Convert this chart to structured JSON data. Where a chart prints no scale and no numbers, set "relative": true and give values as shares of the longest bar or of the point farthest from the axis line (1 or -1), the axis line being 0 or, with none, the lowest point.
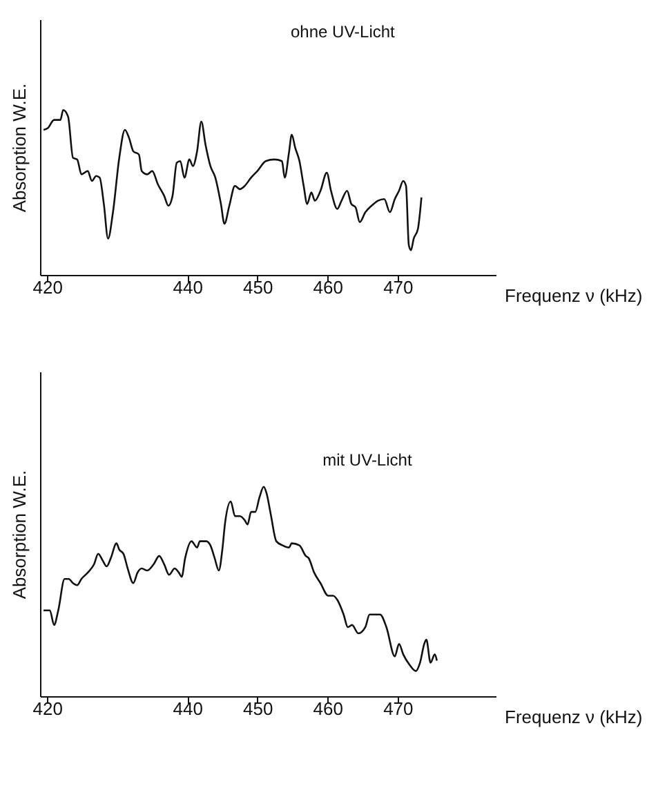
{
  "chart_data": [
    {
      "type": "line",
      "relative": true,
      "ylabel": "Absorption W.E.",
      "xlabel": "Frequenz ν (kHz)",
      "annotations": [
        "ohne UV-Licht"
      ],
      "xlim": [
        419,
        484
      ],
      "xticks": [
        420,
        440,
        450,
        460,
        470
      ],
      "x": [
        419.5,
        420.1,
        421.0,
        421.9,
        422.3,
        423.0,
        423.7,
        424.3,
        424.9,
        425.8,
        426.4,
        427.0,
        427.5,
        428.1,
        428.7,
        429.4,
        430.3,
        431.1,
        431.7,
        432.3,
        433.1,
        433.5,
        434.3,
        435.0,
        435.8,
        436.7,
        437.3,
        437.9,
        438.5,
        439.0,
        439.6,
        440.3,
        440.8,
        441.4,
        442.0,
        442.6,
        443.3,
        444.0,
        444.8,
        445.3,
        446.0,
        446.8,
        447.5,
        448.2,
        449.1,
        450.0,
        451.2,
        452.4,
        453.5,
        453.9,
        454.5,
        454.9,
        455.4,
        456.0,
        456.6,
        457.1,
        457.7,
        458.2,
        459.0,
        459.9,
        460.5,
        461.4,
        462.0,
        462.8,
        463.4,
        464.0,
        464.6,
        465.4,
        466.3,
        467.2,
        468.1,
        468.9,
        469.6,
        470.2,
        470.8,
        471.2,
        471.6,
        471.9,
        472.3,
        472.9,
        473.4
      ],
      "series": [
        {
          "color": "#111111",
          "values": [
            0.88,
            0.89,
            0.94,
            0.94,
            1.0,
            0.96,
            0.71,
            0.7,
            0.61,
            0.63,
            0.57,
            0.6,
            0.59,
            0.43,
            0.22,
            0.38,
            0.71,
            0.88,
            0.83,
            0.75,
            0.73,
            0.63,
            0.61,
            0.63,
            0.55,
            0.48,
            0.42,
            0.48,
            0.68,
            0.69,
            0.59,
            0.7,
            0.66,
            0.75,
            0.93,
            0.79,
            0.66,
            0.59,
            0.43,
            0.31,
            0.42,
            0.54,
            0.52,
            0.54,
            0.59,
            0.63,
            0.69,
            0.7,
            0.69,
            0.59,
            0.74,
            0.85,
            0.77,
            0.69,
            0.54,
            0.43,
            0.5,
            0.45,
            0.51,
            0.62,
            0.51,
            0.4,
            0.45,
            0.51,
            0.43,
            0.41,
            0.32,
            0.38,
            0.42,
            0.45,
            0.46,
            0.38,
            0.46,
            0.51,
            0.57,
            0.54,
            0.18,
            0.15,
            0.22,
            0.28,
            0.47
          ]
        }
      ]
    },
    {
      "type": "line",
      "relative": true,
      "ylabel": "Absorption W.E.",
      "xlabel": "Frequenz ν (kHz)",
      "annotations": [
        "mit UV-Licht"
      ],
      "xlim": [
        419,
        484
      ],
      "xticks": [
        420,
        440,
        450,
        460,
        470
      ],
      "x": [
        419.5,
        420.1,
        420.4,
        421.0,
        421.6,
        422.5,
        423.1,
        423.7,
        424.3,
        424.9,
        425.8,
        426.7,
        427.3,
        427.9,
        428.5,
        429.1,
        429.9,
        430.3,
        430.9,
        431.5,
        432.3,
        432.9,
        433.5,
        434.3,
        435.2,
        436.0,
        436.7,
        437.4,
        438.2,
        438.8,
        439.2,
        439.7,
        440.6,
        441.4,
        441.8,
        442.7,
        443.3,
        443.9,
        444.5,
        445.0,
        445.4,
        446.2,
        446.8,
        447.5,
        448.2,
        448.6,
        449.1,
        449.7,
        450.3,
        450.9,
        451.3,
        451.9,
        452.7,
        453.6,
        454.5,
        454.9,
        456.0,
        456.9,
        457.3,
        458.1,
        459.0,
        460.1,
        460.8,
        461.4,
        462.3,
        462.9,
        463.5,
        464.4,
        465.4,
        466.0,
        466.6,
        467.5,
        468.4,
        469.6,
        470.2,
        470.8,
        471.7,
        472.6,
        473.2,
        473.8,
        474.1,
        474.7,
        475.3,
        475.6
      ],
      "series": [
        {
          "color": "#111111",
          "values": [
            0.41,
            0.41,
            0.41,
            0.34,
            0.41,
            0.56,
            0.56,
            0.54,
            0.53,
            0.56,
            0.59,
            0.63,
            0.68,
            0.65,
            0.62,
            0.66,
            0.73,
            0.7,
            0.68,
            0.61,
            0.54,
            0.59,
            0.61,
            0.6,
            0.63,
            0.67,
            0.63,
            0.58,
            0.61,
            0.59,
            0.57,
            0.66,
            0.74,
            0.71,
            0.74,
            0.74,
            0.72,
            0.66,
            0.6,
            0.7,
            0.83,
            0.93,
            0.86,
            0.86,
            0.84,
            0.82,
            0.88,
            0.88,
            0.95,
            1.0,
            0.97,
            0.87,
            0.74,
            0.72,
            0.71,
            0.73,
            0.72,
            0.67,
            0.66,
            0.59,
            0.54,
            0.48,
            0.48,
            0.46,
            0.39,
            0.33,
            0.34,
            0.3,
            0.33,
            0.39,
            0.39,
            0.39,
            0.33,
            0.19,
            0.25,
            0.2,
            0.15,
            0.12,
            0.16,
            0.25,
            0.27,
            0.16,
            0.2,
            0.17
          ]
        }
      ]
    }
  ]
}
